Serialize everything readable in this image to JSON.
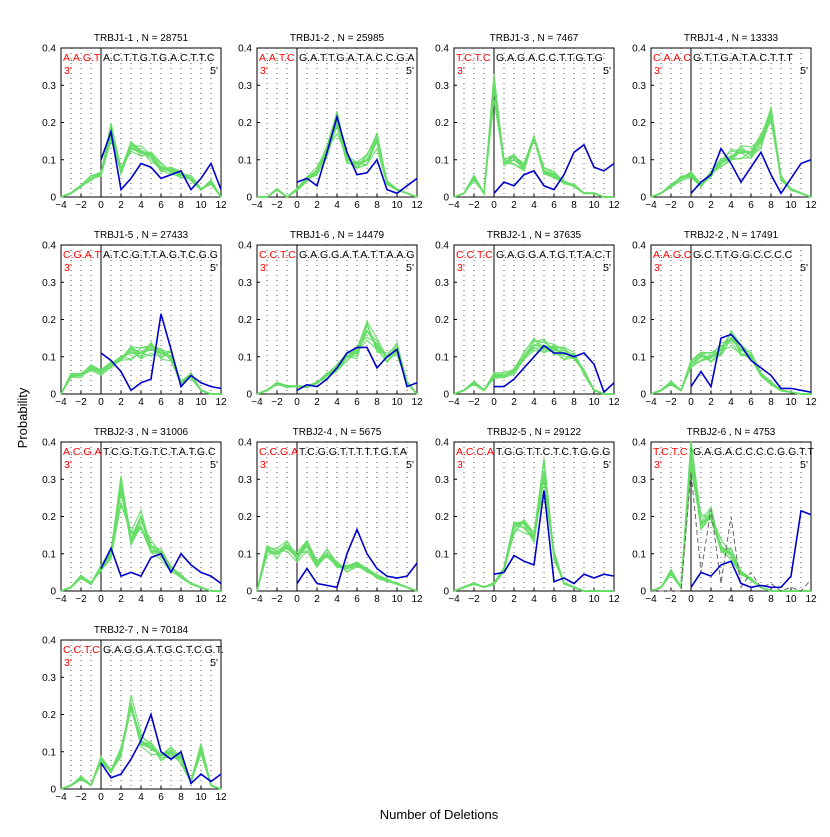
{
  "figure": {
    "ylabel": "Probability",
    "xlabel": "Number of Deletions",
    "colors": {
      "model": "#66dd66",
      "data": "#0000cc",
      "germline": "#ff0000",
      "sequence": "#000000",
      "dashed": "#666666"
    }
  },
  "chart_data": [
    {
      "type": "line",
      "title": "TRBJ1-1 , N = 28751",
      "germline": "A.A.G.T",
      "prime3": "3'",
      "sequence": "A.C.T.T.G.T.G.A.C.T.T.C",
      "prime5": "5'",
      "x": [
        -4,
        -3,
        -2,
        -1,
        0,
        1,
        2,
        3,
        4,
        5,
        6,
        7,
        8,
        9,
        10,
        11,
        12
      ],
      "xlim": [
        -4,
        12
      ],
      "ylim": [
        0,
        0.4
      ],
      "xticks": [
        -4,
        -2,
        0,
        2,
        4,
        6,
        8,
        10,
        12
      ],
      "yticks": [
        0,
        0.1,
        0.2,
        0.3,
        0.4
      ],
      "data_series": [
        null,
        null,
        null,
        null,
        0.1,
        0.175,
        0.02,
        0.05,
        0.09,
        0.08,
        0.05,
        0.06,
        0.07,
        0.02,
        0.05,
        0.09,
        0.02
      ],
      "model_mean": [
        0,
        0.01,
        0.03,
        0.05,
        0.06,
        0.18,
        0.07,
        0.13,
        0.12,
        0.11,
        0.08,
        0.07,
        0.06,
        0.05,
        0.02,
        0.04,
        0
      ]
    },
    {
      "type": "line",
      "title": "TRBJ1-2 , N = 25985",
      "germline": "A.A.T.C",
      "prime3": "3'",
      "sequence": "G.A.T.T.G.A.T.A.C.C.G.A",
      "prime5": "5'",
      "x": [
        -4,
        -3,
        -2,
        -1,
        0,
        1,
        2,
        3,
        4,
        5,
        6,
        7,
        8,
        9,
        10,
        11,
        12
      ],
      "xlim": [
        -4,
        12
      ],
      "ylim": [
        0,
        0.4
      ],
      "xticks": [
        -4,
        -2,
        0,
        2,
        4,
        6,
        8,
        10,
        12
      ],
      "yticks": [
        0,
        0.1,
        0.2,
        0.3,
        0.4
      ],
      "data_series": [
        null,
        null,
        null,
        null,
        0.04,
        0.05,
        0.03,
        0.12,
        0.215,
        0.12,
        0.06,
        0.065,
        0.1,
        0.02,
        0.01,
        0.03,
        0.05
      ],
      "model_mean": [
        0,
        0,
        0.02,
        0,
        0.02,
        0.05,
        0.07,
        0.12,
        0.2,
        0.1,
        0.09,
        0.1,
        0.15,
        0.04,
        0.02,
        0.01,
        0
      ]
    },
    {
      "type": "line",
      "title": "TRBJ1-3 , N = 7467",
      "germline": "T.C.T.C",
      "prime3": "3'",
      "sequence": "G.A.G.A.C.C.T.T.G.T.G",
      "prime5": "5'",
      "x": [
        -4,
        -3,
        -2,
        -1,
        0,
        1,
        2,
        3,
        4,
        5,
        6,
        7,
        8,
        9,
        10,
        11,
        12
      ],
      "xlim": [
        -4,
        12
      ],
      "ylim": [
        0,
        0.4
      ],
      "xticks": [
        -4,
        -2,
        0,
        2,
        4,
        6,
        8,
        10,
        12
      ],
      "yticks": [
        0,
        0.1,
        0.2,
        0.3,
        0.4
      ],
      "data_series": [
        null,
        null,
        null,
        null,
        0.01,
        0.04,
        0.03,
        0.06,
        0.07,
        0.03,
        0.02,
        0.06,
        0.12,
        0.14,
        0.08,
        0.07,
        0.09
      ],
      "model_mean": [
        0,
        0.01,
        0.05,
        0.01,
        0.3,
        0.09,
        0.1,
        0.08,
        0.16,
        0.07,
        0.06,
        0.04,
        0.03,
        0.01,
        0.01,
        0,
        0
      ]
    },
    {
      "type": "line",
      "title": "TRBJ1-4 , N = 13333",
      "germline": "C.A.A.C",
      "prime3": "3'",
      "sequence": "G.T.T.G.A.T.A.C.T.T.T",
      "prime5": "5'",
      "x": [
        -4,
        -3,
        -2,
        -1,
        0,
        1,
        2,
        3,
        4,
        5,
        6,
        7,
        8,
        9,
        10,
        11,
        12
      ],
      "xlim": [
        -4,
        12
      ],
      "ylim": [
        0,
        0.4
      ],
      "xticks": [
        -4,
        -2,
        0,
        2,
        4,
        6,
        8,
        10,
        12
      ],
      "yticks": [
        0,
        0.1,
        0.2,
        0.3,
        0.4
      ],
      "data_series": [
        null,
        null,
        null,
        null,
        0.01,
        0.04,
        0.06,
        0.13,
        0.09,
        0.04,
        0.08,
        0.12,
        0.06,
        0.01,
        0.05,
        0.09,
        0.1
      ],
      "model_mean": [
        0,
        0.01,
        0.03,
        0.05,
        0.06,
        0.03,
        0.06,
        0.09,
        0.11,
        0.12,
        0.12,
        0.15,
        0.22,
        0.05,
        0.02,
        0.01,
        0
      ]
    },
    {
      "type": "line",
      "title": "TRBJ1-5 , N = 27433",
      "germline": "C.G.A.T",
      "prime3": "3'",
      "sequence": "A.T.C.G.T.T.A.G.T.C.G.G",
      "prime5": "5'",
      "x": [
        -4,
        -3,
        -2,
        -1,
        0,
        1,
        2,
        3,
        4,
        5,
        6,
        7,
        8,
        9,
        10,
        11,
        12
      ],
      "xlim": [
        -4,
        12
      ],
      "ylim": [
        0,
        0.4
      ],
      "xticks": [
        -4,
        -2,
        0,
        2,
        4,
        6,
        8,
        10,
        12
      ],
      "yticks": [
        0,
        0.1,
        0.2,
        0.3,
        0.4
      ],
      "data_series": [
        null,
        null,
        null,
        null,
        0.11,
        0.09,
        0.06,
        0.01,
        0.03,
        0.04,
        0.215,
        0.12,
        0.02,
        0.05,
        0.03,
        0.02,
        0.015
      ],
      "model_mean": [
        0,
        0.05,
        0.05,
        0.07,
        0.06,
        0.08,
        0.1,
        0.11,
        0.11,
        0.12,
        0.11,
        0.1,
        0.03,
        0.05,
        0.01,
        0,
        0
      ]
    },
    {
      "type": "line",
      "title": "TRBJ1-6 , N = 14479",
      "germline": "C.C.T.C",
      "prime3": "3'",
      "sequence": "G.A.G.G.A.T.A.T.T.A.A.G",
      "prime5": "5'",
      "x": [
        -4,
        -3,
        -2,
        -1,
        0,
        1,
        2,
        3,
        4,
        5,
        6,
        7,
        8,
        9,
        10,
        11,
        12
      ],
      "xlim": [
        -4,
        12
      ],
      "ylim": [
        0,
        0.4
      ],
      "xticks": [
        -4,
        -2,
        0,
        2,
        4,
        6,
        8,
        10,
        12
      ],
      "yticks": [
        0,
        0.1,
        0.2,
        0.3,
        0.4
      ],
      "data_series": [
        null,
        null,
        null,
        null,
        0.01,
        0.025,
        0.02,
        0.04,
        0.07,
        0.11,
        0.125,
        0.125,
        0.07,
        0.1,
        0.12,
        0.02,
        0.03
      ],
      "model_mean": [
        0,
        0.01,
        0.03,
        0.02,
        0.02,
        0.02,
        0.03,
        0.05,
        0.07,
        0.1,
        0.11,
        0.17,
        0.13,
        0.1,
        0.12,
        0.03,
        0
      ]
    },
    {
      "type": "line",
      "title": "TRBJ2-1 , N = 37635",
      "germline": "C.C.T.C",
      "prime3": "3'",
      "sequence": "G.A.G.G.A.T.G.T.T.A.C.T",
      "prime5": "5'",
      "x": [
        -4,
        -3,
        -2,
        -1,
        0,
        1,
        2,
        3,
        4,
        5,
        6,
        7,
        8,
        9,
        10,
        11,
        12
      ],
      "xlim": [
        -4,
        12
      ],
      "ylim": [
        0,
        0.4
      ],
      "xticks": [
        -4,
        -2,
        0,
        2,
        4,
        6,
        8,
        10,
        12
      ],
      "yticks": [
        0,
        0.1,
        0.2,
        0.3,
        0.4
      ],
      "data_series": [
        null,
        null,
        null,
        null,
        0.02,
        0.02,
        0.04,
        0.07,
        0.1,
        0.13,
        0.11,
        0.11,
        0.1,
        0.11,
        0.08,
        0.005,
        0.03
      ],
      "model_mean": [
        0,
        0.01,
        0.03,
        0.01,
        0.05,
        0.05,
        0.06,
        0.1,
        0.13,
        0.13,
        0.12,
        0.11,
        0.1,
        0.06,
        0.01,
        0,
        0
      ]
    },
    {
      "type": "line",
      "title": "TRBJ2-2 , N = 17491",
      "germline": "A.A.G.C",
      "prime3": "3'",
      "sequence": "G.C.T.T.G.G.C.C.C.C",
      "prime5": "5'",
      "x": [
        -4,
        -3,
        -2,
        -1,
        0,
        1,
        2,
        3,
        4,
        5,
        6,
        7,
        8,
        9,
        10,
        11,
        12
      ],
      "xlim": [
        -4,
        12
      ],
      "ylim": [
        0,
        0.4
      ],
      "xticks": [
        -4,
        -2,
        0,
        2,
        4,
        6,
        8,
        10,
        12
      ],
      "yticks": [
        0,
        0.1,
        0.2,
        0.3,
        0.4
      ],
      "data_series": [
        null,
        null,
        null,
        null,
        0.02,
        0.06,
        0.02,
        0.15,
        0.16,
        0.13,
        0.09,
        0.07,
        0.05,
        0.015,
        0.015,
        0.01,
        0.005
      ],
      "model_mean": [
        0,
        0.01,
        0.03,
        0.01,
        0.08,
        0.1,
        0.1,
        0.12,
        0.15,
        0.12,
        0.1,
        0.05,
        0.03,
        0.01,
        0.005,
        0,
        0
      ]
    },
    {
      "type": "line",
      "title": "TRBJ2-3 , N = 31006",
      "germline": "A.C.G.A",
      "prime3": "3'",
      "sequence": "T.C.G.T.G.T.C.T.A.T.G.C",
      "prime5": "5'",
      "x": [
        -4,
        -3,
        -2,
        -1,
        0,
        1,
        2,
        3,
        4,
        5,
        6,
        7,
        8,
        9,
        10,
        11,
        12
      ],
      "xlim": [
        -4,
        12
      ],
      "ylim": [
        0,
        0.4
      ],
      "xticks": [
        -4,
        -2,
        0,
        2,
        4,
        6,
        8,
        10,
        12
      ],
      "yticks": [
        0,
        0.1,
        0.2,
        0.3,
        0.4
      ],
      "data_series": [
        null,
        null,
        null,
        null,
        0.06,
        0.115,
        0.04,
        0.05,
        0.04,
        0.09,
        0.1,
        0.05,
        0.1,
        0.07,
        0.05,
        0.04,
        0.02
      ],
      "model_mean": [
        0,
        0.01,
        0.04,
        0.02,
        0.06,
        0.1,
        0.27,
        0.14,
        0.2,
        0.12,
        0.1,
        0.06,
        0.04,
        0.02,
        0.01,
        0,
        0
      ]
    },
    {
      "type": "line",
      "title": "TRBJ2-4 , N = 5675",
      "germline": "C.C.G.A",
      "prime3": "3'",
      "sequence": "T.C.G.G.T.T.T.T.T.G.T.A",
      "prime5": "5'",
      "x": [
        -4,
        -3,
        -2,
        -1,
        0,
        1,
        2,
        3,
        4,
        5,
        6,
        7,
        8,
        9,
        10,
        11,
        12
      ],
      "xlim": [
        -4,
        12
      ],
      "ylim": [
        0,
        0.4
      ],
      "xticks": [
        -4,
        -2,
        0,
        2,
        4,
        6,
        8,
        10,
        12
      ],
      "yticks": [
        0,
        0.1,
        0.2,
        0.3,
        0.4
      ],
      "data_series": [
        null,
        null,
        null,
        null,
        0.02,
        0.06,
        0.02,
        0.015,
        0.01,
        0.1,
        0.165,
        0.1,
        0.06,
        0.04,
        0.035,
        0.04,
        0.075
      ],
      "model_mean": [
        0,
        0.11,
        0.1,
        0.12,
        0.09,
        0.12,
        0.07,
        0.1,
        0.07,
        0.06,
        0.07,
        0.06,
        0.04,
        0.03,
        0.02,
        0.01,
        0
      ]
    },
    {
      "type": "line",
      "title": "TRBJ2-5 , N = 29122",
      "germline": "A.C.C.A",
      "prime3": "3'",
      "sequence": "T.G.G.T.T.C.T.C.T.G.G.G",
      "prime5": "5'",
      "x": [
        -4,
        -3,
        -2,
        -1,
        0,
        1,
        2,
        3,
        4,
        5,
        6,
        7,
        8,
        9,
        10,
        11,
        12
      ],
      "xlim": [
        -4,
        12
      ],
      "ylim": [
        0,
        0.4
      ],
      "xticks": [
        -4,
        -2,
        0,
        2,
        4,
        6,
        8,
        10,
        12
      ],
      "yticks": [
        0,
        0.1,
        0.2,
        0.3,
        0.4
      ],
      "data_series": [
        null,
        null,
        null,
        null,
        0.045,
        0.05,
        0.095,
        0.08,
        0.07,
        0.27,
        0.025,
        0.035,
        0.02,
        0.045,
        0.035,
        0.045,
        0.04
      ],
      "model_mean": [
        0,
        0.01,
        0.02,
        0.01,
        0.02,
        0.06,
        0.18,
        0.17,
        0.14,
        0.31,
        0.1,
        0.02,
        0.01,
        0,
        0,
        0,
        0
      ]
    },
    {
      "type": "line",
      "title": "TRBJ2-6 , N = 4753",
      "germline": "T.C.T.C",
      "prime3": "3'",
      "sequence": "G.A.G.A.C.C.C.C.G.G.T.T",
      "prime5": "5'",
      "x": [
        -4,
        -3,
        -2,
        -1,
        0,
        1,
        2,
        3,
        4,
        5,
        6,
        7,
        8,
        9,
        10,
        11,
        12
      ],
      "xlim": [
        -4,
        12
      ],
      "ylim": [
        0,
        0.4
      ],
      "xticks": [
        -4,
        -2,
        0,
        2,
        4,
        6,
        8,
        10,
        12
      ],
      "yticks": [
        0,
        0.1,
        0.2,
        0.3,
        0.4
      ],
      "data_series": [
        null,
        null,
        null,
        null,
        0.01,
        0.05,
        0.04,
        0.07,
        0.08,
        0.02,
        0.01,
        0.015,
        0.01,
        0.01,
        0.04,
        0.215,
        0.205
      ],
      "model_mean": [
        0,
        0.01,
        0.05,
        0.01,
        0.35,
        0.18,
        0.2,
        0.12,
        0.1,
        0.05,
        0.03,
        0.01,
        0,
        0,
        0,
        0,
        0
      ],
      "dashed_series": [
        0,
        0,
        0,
        0,
        0.32,
        0.05,
        0.22,
        0.02,
        0.2,
        0.01,
        0.05,
        0.01,
        0.02,
        0,
        0.01,
        0,
        0.03
      ]
    },
    {
      "type": "line",
      "title": "TRBJ2-7 , N = 70184",
      "germline": "C.C.T.C",
      "prime3": "3'",
      "sequence": "G.A.G.G.A.T.G.C.T.C.G.T.",
      "prime5": "5'",
      "x": [
        -4,
        -3,
        -2,
        -1,
        0,
        1,
        2,
        3,
        4,
        5,
        6,
        7,
        8,
        9,
        10,
        11,
        12
      ],
      "xlim": [
        -4,
        12
      ],
      "ylim": [
        0,
        0.4
      ],
      "xticks": [
        -4,
        -2,
        0,
        2,
        4,
        6,
        8,
        10,
        12
      ],
      "yticks": [
        0,
        0.1,
        0.2,
        0.3,
        0.4
      ],
      "data_series": [
        null,
        null,
        null,
        null,
        0.07,
        0.03,
        0.04,
        0.08,
        0.13,
        0.2,
        0.1,
        0.08,
        0.1,
        0.015,
        0.04,
        0.02,
        0.04
      ],
      "model_mean": [
        0,
        0.01,
        0.03,
        0.01,
        0.08,
        0.05,
        0.1,
        0.22,
        0.13,
        0.11,
        0.09,
        0.1,
        0.08,
        0.02,
        0.11,
        0.01,
        0
      ]
    }
  ]
}
